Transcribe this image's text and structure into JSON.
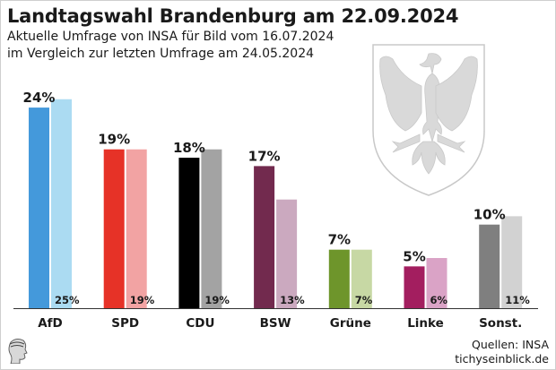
{
  "header": {
    "title": "Landtagswahl Brandenburg am 22.09.2024",
    "subtitle_line1": "Aktuelle Umfrage von INSA für Bild vom 16.07.2024",
    "subtitle_line2": "im Vergleich zur letzten Umfrage am 24.05.2024"
  },
  "footer": {
    "source_line1": "Quellen: INSA",
    "source_line2": "tichyseinblick.de"
  },
  "icons": {
    "crest": "brandenburg-eagle-crest-icon",
    "logo": "tichys-einblick-head-logo-icon"
  },
  "chart_data": {
    "type": "bar",
    "title": "Landtagswahl Brandenburg am 22.09.2024",
    "xlabel": "",
    "ylabel": "",
    "ylim": [
      0,
      25
    ],
    "grid": false,
    "categories": [
      "AfD",
      "SPD",
      "CDU",
      "BSW",
      "Grüne",
      "Linke",
      "Sonst."
    ],
    "series": [
      {
        "name": "INSA 16.07.2024",
        "values": [
          24,
          19,
          18,
          17,
          7,
          5,
          10
        ],
        "labels": [
          "24%",
          "19%",
          "18%",
          "17%",
          "7%",
          "5%",
          "10%"
        ],
        "colors": [
          "#4499db",
          "#e63227",
          "#000000",
          "#722a4e",
          "#6e952b",
          "#a31e5f",
          "#7f7f7f"
        ]
      },
      {
        "name": "INSA 24.05.2024",
        "values": [
          25,
          19,
          19,
          13,
          7,
          6,
          11
        ],
        "labels": [
          "25%",
          "19%",
          "19%",
          "13%",
          "7%",
          "6%",
          "11%"
        ],
        "colors": [
          "#abdbf2",
          "#f2a3a3",
          "#a3a3a3",
          "#cba9bf",
          "#c7d8a4",
          "#daa3c6",
          "#d2d2d2"
        ]
      }
    ]
  }
}
